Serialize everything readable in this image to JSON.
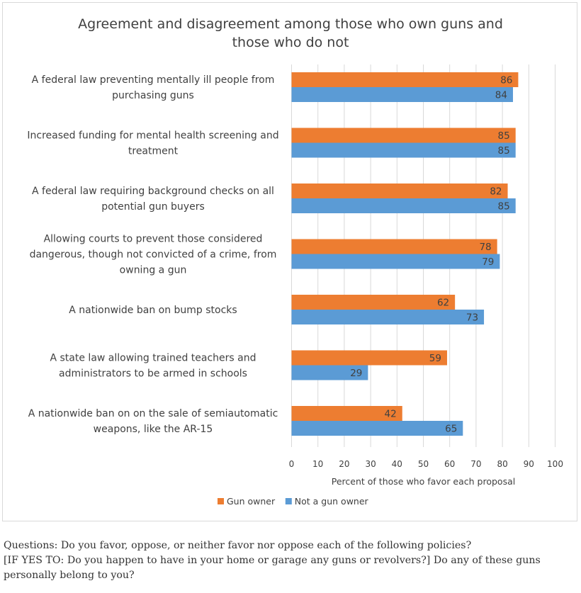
{
  "chart_data": {
    "type": "bar",
    "orientation": "horizontal",
    "title_lines": [
      "Agreement and disagreement among those who own guns and",
      "those who do not"
    ],
    "categories": [
      [
        "A federal law preventing mentally ill people from",
        "purchasing guns"
      ],
      [
        "Increased funding for mental health screening and",
        "treatment"
      ],
      [
        "A federal law requiring background checks on all",
        "potential gun buyers"
      ],
      [
        "Allowing courts to prevent those considered",
        "dangerous, though not convicted of a crime, from",
        "owning a gun"
      ],
      [
        "A nationwide ban on bump stocks"
      ],
      [
        "A state law allowing trained teachers and",
        "administrators to be armed in schools"
      ],
      [
        "A nationwide ban on on the sale of semiautomatic",
        "weapons, like the AR-15"
      ]
    ],
    "series": [
      {
        "name": "Gun owner",
        "color": "#ed7d31",
        "values": [
          86,
          85,
          82,
          78,
          62,
          59,
          42
        ]
      },
      {
        "name": "Not a gun owner",
        "color": "#5b9bd5",
        "values": [
          84,
          85,
          85,
          79,
          73,
          29,
          65
        ]
      }
    ],
    "xlim": [
      0,
      100
    ],
    "xticks": [
      "0",
      "10",
      "20",
      "30",
      "40",
      "50",
      "60",
      "70",
      "80",
      "90",
      "100"
    ],
    "xlabel": "Percent of those who favor each proposal",
    "ylabel": "",
    "grid": true,
    "legend_position": "bottom"
  },
  "notes": [
    "Questions: Do you favor, oppose, or neither favor nor oppose each of the following policies?",
    "[IF YES TO: Do you happen to have in your home or garage any guns or revolvers?] Do any of these guns",
    "personally belong to you?"
  ]
}
